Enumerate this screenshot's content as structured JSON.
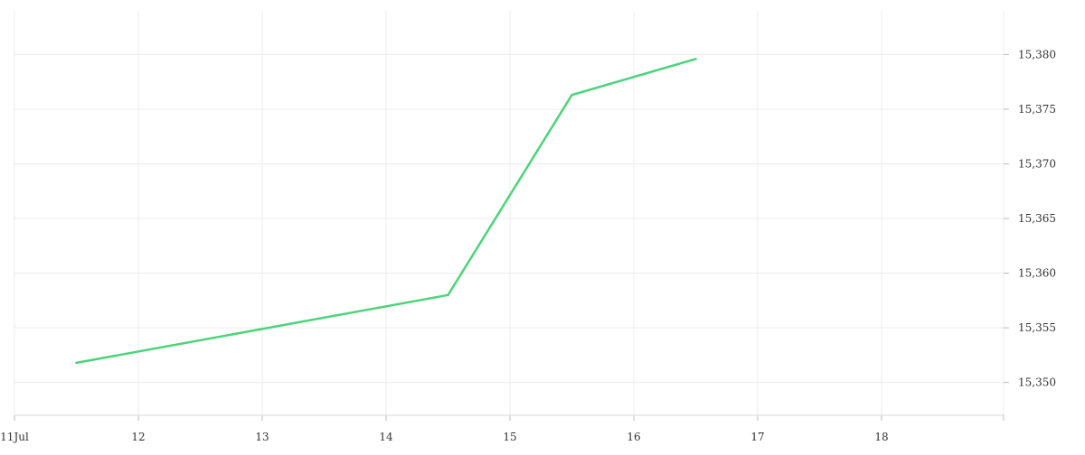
{
  "chart_data": {
    "type": "line",
    "x_tick_labels": [
      "11Jul",
      "12",
      "13",
      "14",
      "15",
      "16",
      "17",
      "18"
    ],
    "y_tick_labels": [
      "15,350",
      "15,355",
      "15,360",
      "15,365",
      "15,370",
      "15,375",
      "15,380"
    ],
    "ylim": [
      15347,
      15384
    ],
    "xlim": [
      "2024-07-11T00:00",
      "2024-07-19T00:00"
    ],
    "grid": true,
    "series": [
      {
        "color": "#4cd47a",
        "x": [
          "2024-07-11T12:00",
          "2024-07-14T12:00",
          "2024-07-15T12:00",
          "2024-07-16T12:00"
        ],
        "y": [
          15351.8,
          15358.0,
          15376.3,
          15379.6
        ]
      }
    ]
  }
}
